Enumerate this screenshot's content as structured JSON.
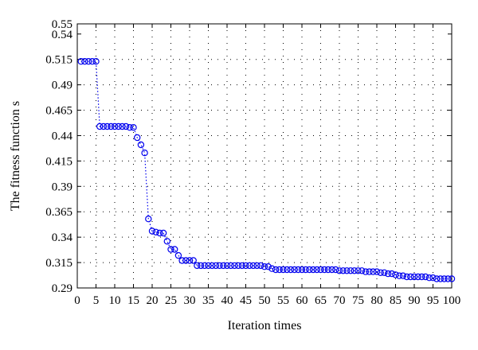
{
  "chart_data": {
    "type": "line",
    "xlabel": "Iteration times",
    "ylabel": "The fitness function s",
    "xlim": [
      0,
      100
    ],
    "ylim": [
      0.29,
      0.55
    ],
    "x_ticks": [
      0,
      5,
      10,
      15,
      20,
      25,
      30,
      35,
      40,
      45,
      50,
      55,
      60,
      65,
      70,
      75,
      80,
      85,
      90,
      95,
      100
    ],
    "y_ticks": [
      0.29,
      0.315,
      0.34,
      0.365,
      0.39,
      0.415,
      0.44,
      0.465,
      0.49,
      0.515,
      0.54,
      0.55
    ],
    "grid": true,
    "marker": "circle",
    "line_style": "dotted",
    "color": "#0000ee",
    "series": [
      {
        "x": [
          1,
          2,
          3,
          4,
          5,
          6,
          7,
          8,
          9,
          10,
          11,
          12,
          13,
          14,
          15,
          16,
          17,
          18,
          19,
          20,
          21,
          22,
          23,
          24,
          25,
          26,
          27,
          28,
          29,
          30,
          31,
          32,
          33,
          34,
          35,
          36,
          37,
          38,
          39,
          40,
          41,
          42,
          43,
          44,
          45,
          46,
          47,
          48,
          49,
          50,
          51,
          52,
          53,
          54,
          55,
          56,
          57,
          58,
          59,
          60,
          61,
          62,
          63,
          64,
          65,
          66,
          67,
          68,
          69,
          70,
          71,
          72,
          73,
          74,
          75,
          76,
          77,
          78,
          79,
          80,
          81,
          82,
          83,
          84,
          85,
          86,
          87,
          88,
          89,
          90,
          91,
          92,
          93,
          94,
          95,
          96,
          97,
          98,
          99,
          100
        ],
        "values": [
          0.513,
          0.513,
          0.513,
          0.513,
          0.513,
          0.449,
          0.449,
          0.449,
          0.449,
          0.449,
          0.449,
          0.449,
          0.449,
          0.448,
          0.448,
          0.438,
          0.431,
          0.423,
          0.358,
          0.346,
          0.345,
          0.344,
          0.344,
          0.336,
          0.328,
          0.328,
          0.322,
          0.317,
          0.317,
          0.317,
          0.317,
          0.312,
          0.312,
          0.312,
          0.312,
          0.312,
          0.312,
          0.312,
          0.312,
          0.312,
          0.312,
          0.312,
          0.312,
          0.312,
          0.312,
          0.312,
          0.312,
          0.312,
          0.312,
          0.311,
          0.311,
          0.309,
          0.308,
          0.308,
          0.308,
          0.308,
          0.308,
          0.308,
          0.308,
          0.308,
          0.308,
          0.308,
          0.308,
          0.308,
          0.308,
          0.308,
          0.308,
          0.308,
          0.308,
          0.307,
          0.307,
          0.307,
          0.307,
          0.307,
          0.307,
          0.307,
          0.306,
          0.306,
          0.306,
          0.306,
          0.305,
          0.305,
          0.304,
          0.304,
          0.303,
          0.302,
          0.302,
          0.301,
          0.301,
          0.301,
          0.301,
          0.301,
          0.301,
          0.3,
          0.3,
          0.299,
          0.299,
          0.299,
          0.299,
          0.299
        ]
      }
    ]
  }
}
